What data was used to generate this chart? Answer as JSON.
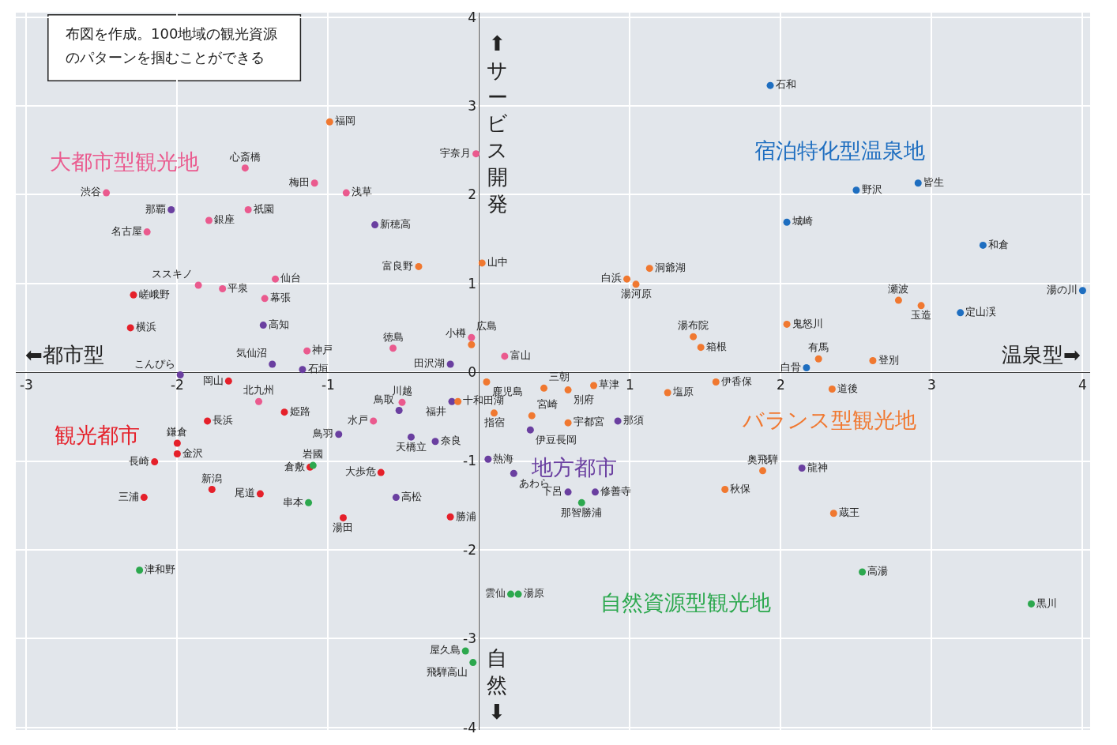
{
  "chart_data": {
    "type": "scatter",
    "xlim": [
      -3.07,
      4.05
    ],
    "ylim": [
      -4.03,
      4.05
    ],
    "xticks": [
      -3,
      -2,
      -1,
      {
        "value": 0,
        "label": null
      },
      1,
      2,
      3,
      4
    ],
    "yticks": [
      -4,
      -3,
      -2,
      -1,
      0,
      1,
      2,
      3,
      4
    ],
    "grid": true,
    "legend": false,
    "marker": "circle",
    "annotations": [
      "布図を作成。100地域の観光資源",
      "のパターンを掴むことができる",
      "⬅都市型",
      "温泉型➡",
      "⬆サービス開発",
      "自然⬇"
    ],
    "series": [
      {
        "name": "大都市型観光地",
        "color": "#ea5a8e",
        "x": [
          -1.55,
          -2.47,
          -1.09,
          -0.88,
          -0.02,
          -1.53,
          -1.79,
          -2.2,
          -1.86,
          -1.7,
          -1.35,
          -1.42,
          -1.14,
          -0.57,
          -0.05,
          0.17,
          -1.46,
          -0.51,
          -0.7
        ],
        "values": [
          2.3,
          2.02,
          2.13,
          2.02,
          2.46,
          1.83,
          1.71,
          1.58,
          0.98,
          0.94,
          1.05,
          0.83,
          0.24,
          0.27,
          0.39,
          0.18,
          -0.33,
          -0.34,
          -0.55
        ],
        "value_labels": [
          "心斎橋",
          "渋谷",
          "梅田",
          "浅草",
          "宇奈月",
          "祇園",
          "銀座",
          "名古屋",
          "ススキノ",
          "平泉",
          "仙台",
          "幕張",
          "神戸",
          "徳島",
          "広島",
          "富山",
          "北九州",
          "川越",
          "水戸"
        ]
      },
      {
        "name": "観光都市",
        "color": "#e5202a",
        "x": [
          -2.29,
          -2.31,
          -1.66,
          -1.29,
          -1.8,
          -2.0,
          -2.0,
          -2.15,
          -1.77,
          -1.45,
          -2.22,
          -1.12,
          -0.65,
          -0.9,
          -0.19
        ],
        "values": [
          0.87,
          0.5,
          -0.1,
          -0.45,
          -0.55,
          -0.8,
          -0.92,
          -1.01,
          -1.32,
          -1.37,
          -1.41,
          -1.07,
          -1.13,
          -1.64,
          -1.63
        ],
        "value_labels": [
          "嵯峨野",
          "横浜",
          "岡山",
          "姫路",
          "長浜",
          "鎌倉",
          "金沢",
          "長崎",
          "新潟",
          "尾道",
          "三浦",
          "倉敷",
          "大歩危",
          "湯田",
          "勝浦"
        ]
      },
      {
        "name": "地方都市",
        "color": "#6a3fa0",
        "x": [
          -2.04,
          -0.69,
          -1.43,
          -1.37,
          -1.17,
          -0.19,
          -1.98,
          -0.53,
          -0.18,
          -0.93,
          -0.45,
          -0.29,
          -0.55,
          0.06,
          0.23,
          0.34,
          0.92,
          0.59,
          0.77,
          2.14
        ],
        "values": [
          1.83,
          1.66,
          0.53,
          0.09,
          0.03,
          0.09,
          -0.03,
          -0.43,
          -0.33,
          -0.7,
          -0.73,
          -0.78,
          -1.41,
          -0.98,
          -1.14,
          -0.65,
          -0.55,
          -1.35,
          -1.35,
          -1.08
        ],
        "value_labels": [
          "那覇",
          "新穂高",
          "高知",
          "気仙沼",
          "石垣",
          "田沢湖",
          "こんぴら",
          "鳥取",
          "福井",
          "鳥羽",
          "天橋立",
          "奈良",
          "高松",
          "熱海",
          "あわら",
          "伊豆長岡",
          "那須",
          "下呂",
          "修善寺",
          "龍神"
        ]
      },
      {
        "name": "バランス型観光地",
        "color": "#f07830",
        "x": [
          -0.99,
          -0.4,
          0.02,
          -0.05,
          -0.14,
          0.1,
          1.13,
          0.98,
          1.04,
          1.42,
          1.47,
          2.04,
          2.25,
          2.61,
          2.78,
          2.93,
          0.05,
          0.43,
          0.59,
          0.76,
          0.35,
          0.59,
          1.25,
          1.57,
          2.34,
          1.88,
          1.63,
          2.35
        ],
        "values": [
          2.82,
          1.19,
          1.23,
          0.31,
          -0.33,
          -0.46,
          1.17,
          1.05,
          0.99,
          0.4,
          0.28,
          0.54,
          0.15,
          0.13,
          0.81,
          0.75,
          -0.11,
          -0.18,
          -0.2,
          -0.15,
          -0.49,
          -0.57,
          -0.23,
          -0.11,
          -0.19,
          -1.11,
          -1.32,
          -1.59
        ],
        "value_labels": [
          "福岡",
          "富良野",
          "山中",
          "小樽",
          "十和田湖",
          "指宿",
          "洞爺湖",
          "白浜",
          "湯河原",
          "湯布院",
          "箱根",
          "鬼怒川",
          "有馬",
          "登別",
          "瀬波",
          "玉造",
          "鹿児島",
          "三朝",
          "別府",
          "草津",
          "宮崎",
          "宇都宮",
          "塩原",
          "伊香保",
          "道後",
          "奥飛騨",
          "秋保",
          "蔵王"
        ]
      },
      {
        "name": "宿泊特化型温泉地",
        "color": "#1e6ec0",
        "x": [
          1.93,
          2.5,
          2.91,
          2.04,
          3.34,
          4.0,
          3.19,
          2.17
        ],
        "values": [
          3.23,
          2.05,
          2.13,
          1.69,
          1.43,
          0.92,
          0.67,
          0.05
        ],
        "value_labels": [
          "石和",
          "野沢",
          "皆生",
          "城崎",
          "和倉",
          "湯の川",
          "定山渓",
          "白骨"
        ]
      },
      {
        "name": "自然資源型観光地",
        "color": "#2ca84e",
        "x": [
          -1.1,
          -1.13,
          -2.25,
          -0.09,
          -0.04,
          0.21,
          0.26,
          0.68,
          2.54,
          3.66
        ],
        "values": [
          -1.05,
          -1.47,
          -2.23,
          -3.14,
          -3.27,
          -2.5,
          -2.5,
          -1.47,
          -2.25,
          -2.61
        ],
        "value_labels": [
          "岩國",
          "串本",
          "津和野",
          "屋久島",
          "飛騨高山",
          "雲仙",
          "湯原",
          "那智勝浦",
          "高湯",
          "黒川"
        ]
      }
    ]
  }
}
